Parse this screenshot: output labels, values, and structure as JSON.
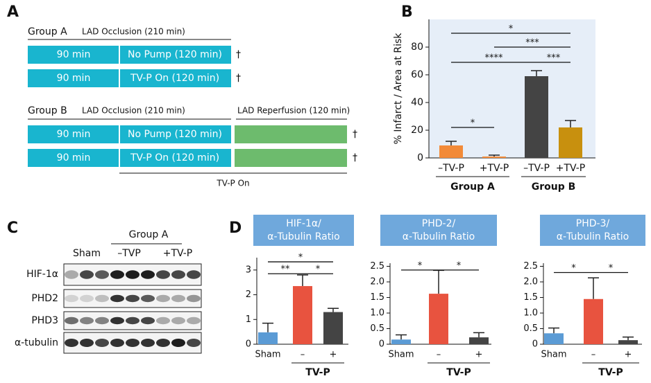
{
  "panel_a": {
    "label": "A",
    "groups": [
      {
        "name": "Group A",
        "occlusion": "LAD Occlusion (210 min)",
        "rows": [
          {
            "phase1": "90 min",
            "phase2": "No Pump (120 min)",
            "outcome": "†"
          },
          {
            "phase1": "90 min",
            "phase2": "TV-P On (120 min)",
            "outcome": "†"
          }
        ]
      },
      {
        "name": "Group B",
        "occlusion": "LAD Occlusion (210 min)",
        "reperfusion": "LAD Reperfusion (120 min)",
        "rows": [
          {
            "phase1": "90 min",
            "phase2": "No Pump (120 min)",
            "outcome": "†"
          },
          {
            "phase1": "90 min",
            "phase2": "TV-P On (120 min)",
            "outcome": "†"
          }
        ],
        "treatment": "TV-P On"
      }
    ]
  },
  "panel_c": {
    "label": "C",
    "sham": "Sham",
    "group": "Group A",
    "minus": "–TVP",
    "plus": "+TV-P",
    "rows": [
      "HIF-1α",
      "PHD2",
      "PHD3",
      "α-tubulin"
    ]
  },
  "chart_data": [
    {
      "type": "bar",
      "panel_label": "B",
      "ylabel": "% Infarct / Area at Risk",
      "categories": [
        "–TV-P",
        "+TV-P",
        "–TV-P",
        "+TV-P"
      ],
      "group_labels": [
        "Group A",
        "Group B"
      ],
      "values": [
        9,
        1,
        59,
        22
      ],
      "errors": [
        3,
        1,
        4,
        5
      ],
      "colors": [
        "#f28a38",
        "#f28a38",
        "#444444",
        "#c8900e"
      ],
      "ylim": [
        0,
        100
      ],
      "yticks": [
        0,
        20,
        40,
        60,
        80
      ],
      "background": "#e6eef8",
      "significance": [
        {
          "from": 0,
          "to": 1,
          "label": "*",
          "level": 22
        },
        {
          "from": 0,
          "to": 2,
          "label": "****",
          "level": 69
        },
        {
          "from": 2,
          "to": 3,
          "label": "***",
          "level": 69
        },
        {
          "from": 1,
          "to": 3,
          "label": "***",
          "level": 80
        },
        {
          "from": 0,
          "to": 3,
          "label": "*",
          "level": 90
        }
      ]
    },
    {
      "type": "bar",
      "panel_label": "D",
      "title": [
        "HIF-1α/",
        "α-Tubulin Ratio"
      ],
      "categories": [
        "Sham",
        "–",
        "+"
      ],
      "group_label": "TV-P",
      "values": [
        0.48,
        2.35,
        1.3
      ],
      "errors": [
        0.37,
        0.45,
        0.15
      ],
      "colors": [
        "#5b9bd5",
        "#e8533f",
        "#444444"
      ],
      "ylim": [
        0,
        3.5
      ],
      "yticks": [
        0,
        1,
        2,
        3
      ],
      "significance": [
        {
          "from": 0,
          "to": 1,
          "label": "**",
          "level": 2.85
        },
        {
          "from": 1,
          "to": 2,
          "label": "*",
          "level": 2.85
        },
        {
          "from": 0,
          "to": 2,
          "label": "*",
          "level": 3.33
        }
      ]
    },
    {
      "type": "bar",
      "title": [
        "PHD-2/",
        "α-Tubulin Ratio"
      ],
      "categories": [
        "Sham",
        "–",
        "+"
      ],
      "group_label": "TV-P",
      "values": [
        0.15,
        1.62,
        0.22
      ],
      "errors": [
        0.15,
        0.75,
        0.15
      ],
      "colors": [
        "#5b9bd5",
        "#e8533f",
        "#444444"
      ],
      "ylim": [
        0,
        2.6
      ],
      "yticks": [
        0,
        0.5,
        {
          "value": 1,
          "label": "1.0"
        },
        1.5,
        {
          "value": 2,
          "label": "2.0"
        },
        2.5
      ],
      "significance": [
        {
          "from": 0,
          "to": 1,
          "label": "*",
          "level": 2.38
        },
        {
          "from": 1,
          "to": 2,
          "label": "*",
          "level": 2.38
        }
      ]
    },
    {
      "type": "bar",
      "title": [
        "PHD-3/",
        "α-Tubulin Ratio"
      ],
      "categories": [
        "Sham",
        "–",
        "+"
      ],
      "group_label": "TV-P",
      "values": [
        0.35,
        1.45,
        0.13
      ],
      "errors": [
        0.17,
        0.68,
        0.1
      ],
      "colors": [
        "#5b9bd5",
        "#e8533f",
        "#444444"
      ],
      "ylim": [
        0,
        2.6
      ],
      "yticks": [
        0,
        0.5,
        {
          "value": 1,
          "label": "1.0"
        },
        1.5,
        {
          "value": 2,
          "label": "2.0"
        },
        2.5
      ],
      "significance": [
        {
          "from": 0,
          "to": 1,
          "label": "*",
          "level": 2.3
        },
        {
          "from": 1,
          "to": 2,
          "label": "*",
          "level": 2.3
        }
      ]
    }
  ]
}
